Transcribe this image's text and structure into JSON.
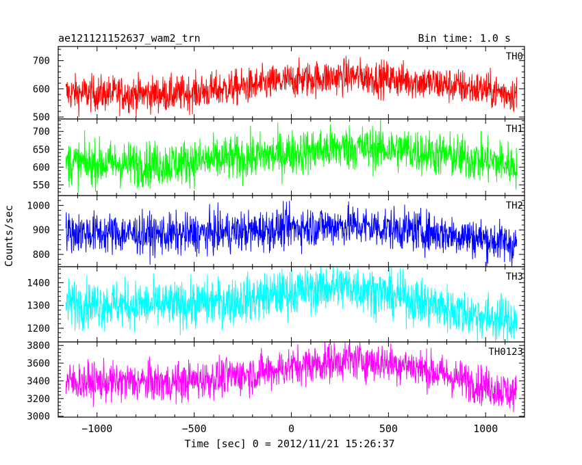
{
  "chart_data": {
    "type": "line",
    "title": "ae121121152637_wam2_trn",
    "subtitle": "Bin time: 1.0 s",
    "xlabel": "Time [sec] 0 = 2012/11/21 15:26:37",
    "ylabel": "Counts/sec",
    "xlim": [
      -1200,
      1200
    ],
    "x_ticks": [
      -1000,
      -500,
      0,
      500,
      1000
    ],
    "x_tick_labels": [
      "−1000",
      "−500",
      "0",
      "500",
      "1000"
    ],
    "x_range": [
      -1160,
      1160
    ],
    "bin_time_sec": 1.0,
    "series": [
      {
        "name": "TH0",
        "color": "#ff0000",
        "ylim": [
          493,
          750
        ],
        "y_ticks": [
          500,
          600,
          700
        ],
        "y_tick_labels": [
          "500",
          "600",
          "700"
        ],
        "trend": [
          [
            -1160,
            585
          ],
          [
            -600,
            580
          ],
          [
            -200,
            610
          ],
          [
            0,
            630
          ],
          [
            300,
            645
          ],
          [
            600,
            630
          ],
          [
            900,
            605
          ],
          [
            1160,
            580
          ]
        ],
        "noise": 32
      },
      {
        "name": "TH1",
        "color": "#00ff00",
        "ylim": [
          520,
          735
        ],
        "y_ticks": [
          550,
          600,
          650,
          700
        ],
        "y_tick_labels": [
          "550",
          "600",
          "650",
          "700"
        ],
        "trend": [
          [
            -1160,
            612
          ],
          [
            -700,
            608
          ],
          [
            -200,
            628
          ],
          [
            0,
            640
          ],
          [
            300,
            655
          ],
          [
            600,
            648
          ],
          [
            900,
            625
          ],
          [
            1160,
            605
          ]
        ],
        "noise": 32
      },
      {
        "name": "TH2",
        "color": "#0000ff",
        "ylim": [
          750,
          1040
        ],
        "y_ticks": [
          800,
          900,
          1000
        ],
        "y_tick_labels": [
          "800",
          "900",
          "1000"
        ],
        "trend": [
          [
            -1160,
            890
          ],
          [
            -600,
            880
          ],
          [
            -200,
            895
          ],
          [
            0,
            910
          ],
          [
            300,
            920
          ],
          [
            600,
            900
          ],
          [
            900,
            875
          ],
          [
            1160,
            840
          ]
        ],
        "noise": 42
      },
      {
        "name": "TH3",
        "color": "#00ffff",
        "ylim": [
          1140,
          1470
        ],
        "y_ticks": [
          1200,
          1300,
          1400
        ],
        "y_tick_labels": [
          "1200",
          "1300",
          "1400"
        ],
        "trend": [
          [
            -1160,
            1310
          ],
          [
            -600,
            1300
          ],
          [
            -200,
            1330
          ],
          [
            0,
            1360
          ],
          [
            300,
            1385
          ],
          [
            600,
            1330
          ],
          [
            900,
            1265
          ],
          [
            1160,
            1230
          ]
        ],
        "noise": 52
      },
      {
        "name": "TH0123",
        "color": "#ff00ff",
        "ylim": [
          2990,
          3840
        ],
        "y_ticks": [
          3000,
          3200,
          3400,
          3600,
          3800
        ],
        "y_tick_labels": [
          "3000",
          "3200",
          "3400",
          "3600",
          "3800"
        ],
        "trend": [
          [
            -1160,
            3390
          ],
          [
            -600,
            3380
          ],
          [
            -200,
            3480
          ],
          [
            0,
            3560
          ],
          [
            300,
            3640
          ],
          [
            600,
            3580
          ],
          [
            900,
            3400
          ],
          [
            1160,
            3250
          ]
        ],
        "noise": 110
      }
    ]
  }
}
